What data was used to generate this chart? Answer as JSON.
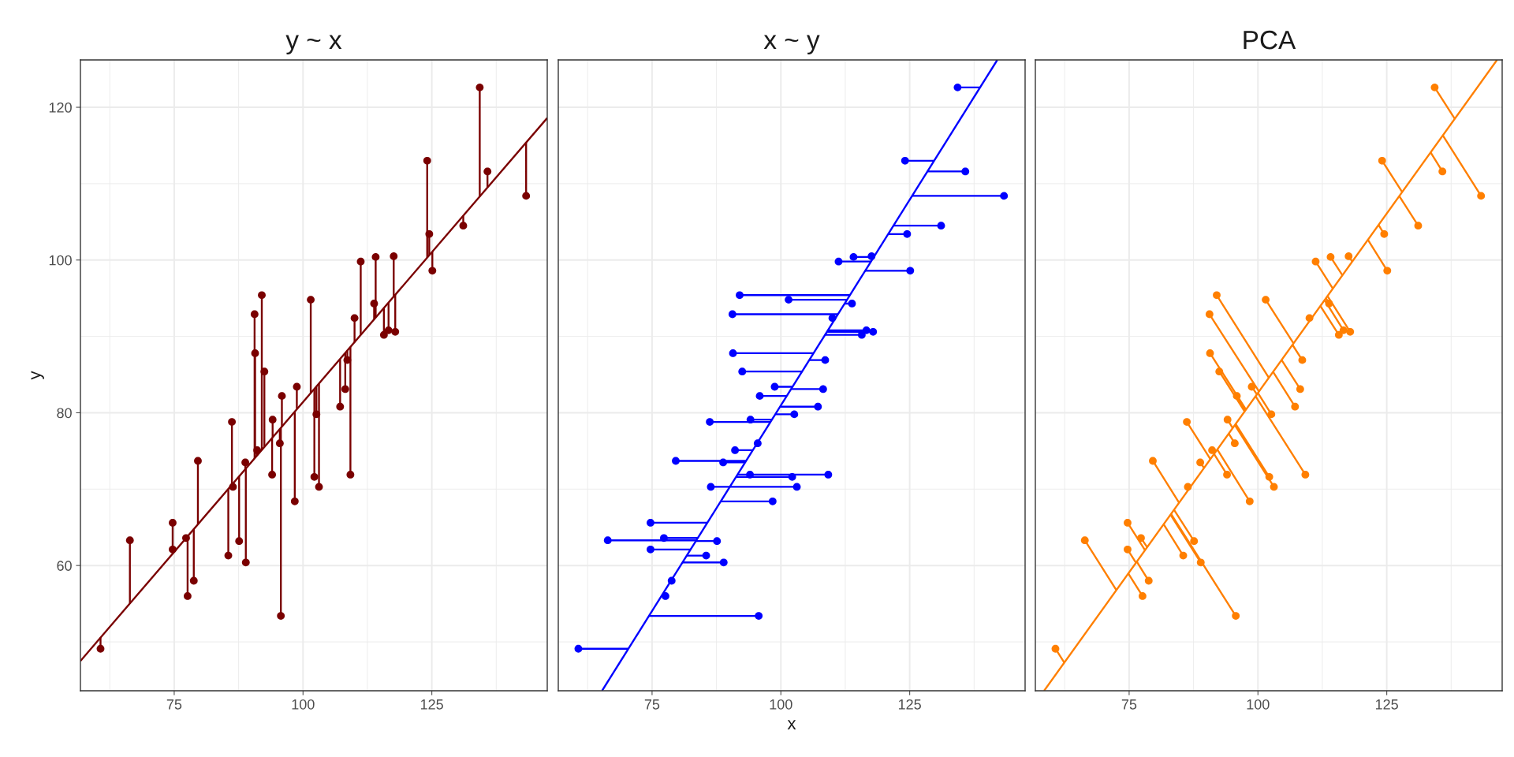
{
  "chart_data": [
    {
      "type": "scatter",
      "title": "y ~ x",
      "ylabel": "y",
      "xlim": [
        56.8,
        147.4
      ],
      "ylim": [
        43.6,
        126.2
      ],
      "xticks": [
        75,
        100,
        125
      ],
      "yticks": [
        60,
        80,
        100,
        120
      ],
      "grid": true,
      "series": [
        {
          "type": "scatter",
          "marker": "circle",
          "color": "#7a0000",
          "x": [
            60.7,
            66.4,
            74.7,
            74.7,
            77.3,
            77.6,
            78.8,
            79.6,
            85.5,
            86.2,
            86.4,
            87.6,
            88.8,
            88.9,
            90.6,
            90.7,
            91.1,
            92.0,
            92.5,
            94.0,
            94.1,
            95.5,
            95.9,
            95.7,
            98.4,
            98.8,
            101.5,
            102.2,
            102.6,
            103.1,
            107.2,
            108.2,
            108.6,
            109.2,
            110.0,
            111.2,
            113.8,
            114.1,
            115.7,
            116.6,
            117.6,
            117.9,
            124.1,
            124.5,
            125.1,
            131.1,
            134.3,
            135.8,
            143.3
          ],
          "values": [
            49.1,
            63.3,
            65.6,
            62.1,
            63.6,
            56.0,
            58.0,
            73.7,
            61.3,
            78.8,
            70.3,
            63.2,
            73.5,
            60.4,
            92.9,
            87.8,
            75.1,
            95.4,
            85.4,
            71.9,
            79.1,
            76.0,
            82.2,
            53.4,
            68.4,
            83.4,
            94.8,
            71.6,
            79.8,
            70.3,
            80.8,
            83.1,
            86.9,
            71.9,
            92.4,
            99.8,
            94.3,
            100.4,
            90.2,
            90.8,
            100.5,
            90.6,
            113.0,
            103.4,
            98.6,
            104.5,
            122.6,
            111.6,
            108.4
          ]
        },
        {
          "type": "line",
          "marker": "none",
          "color": "#7a0000",
          "x": [
            60.7,
            60.7,
            null,
            66.4,
            66.4,
            null,
            74.7,
            74.7,
            null,
            77.6,
            77.6,
            null,
            78.8,
            78.8,
            null,
            79.6,
            79.6,
            null,
            85.5,
            85.5,
            null,
            86.2,
            86.2,
            null,
            87.6,
            87.6,
            null,
            88.8,
            88.8,
            null,
            88.9,
            88.9,
            null,
            90.6,
            90.6,
            null,
            90.7,
            90.7,
            null,
            91.1,
            91.1,
            null,
            92.0,
            92.0,
            null,
            92.5,
            92.5,
            null,
            94.0,
            94.0,
            null,
            94.1,
            94.1,
            null,
            95.5,
            95.5,
            null,
            95.9,
            95.9,
            null,
            95.7,
            95.7,
            null,
            98.4,
            98.4,
            null,
            98.8,
            98.8,
            null,
            101.5,
            101.5,
            null,
            102.2,
            102.2,
            null,
            102.6,
            102.6,
            null,
            103.1,
            103.1,
            null,
            107.2,
            107.2,
            null,
            108.2,
            108.2,
            null,
            108.6,
            108.6,
            null,
            109.2,
            109.2,
            null,
            110.0,
            110.0,
            null,
            111.2,
            111.2,
            null,
            113.8,
            113.8,
            null,
            114.1,
            114.1,
            null,
            115.7,
            115.7,
            null,
            116.6,
            116.6,
            null,
            117.6,
            117.6,
            null,
            117.9,
            117.9,
            null,
            124.1,
            124.1,
            null,
            124.5,
            124.5,
            null,
            125.1,
            125.1,
            null,
            131.1,
            131.1,
            null,
            134.3,
            134.3,
            null,
            135.8,
            135.8,
            null,
            143.3,
            143.3
          ],
          "values": [
            49.1,
            50.6,
            null,
            63.3,
            55.0,
            null,
            65.6,
            61.5,
            null,
            56.0,
            63.8,
            null,
            58.0,
            64.8,
            null,
            73.7,
            65.4,
            null,
            61.3,
            70.0,
            null,
            78.8,
            70.6,
            null,
            63.2,
            71.7,
            null,
            73.5,
            72.6,
            null,
            60.4,
            72.7,
            null,
            92.9,
            74.0,
            null,
            87.8,
            74.1,
            null,
            75.1,
            74.4,
            null,
            95.4,
            75.1,
            null,
            85.4,
            75.5,
            null,
            71.9,
            76.7,
            null,
            79.1,
            76.8,
            null,
            76.0,
            77.9,
            null,
            82.2,
            78.2,
            null,
            53.4,
            78.0,
            null,
            68.4,
            80.1,
            null,
            83.4,
            80.5,
            null,
            94.8,
            82.6,
            null,
            71.6,
            83.1,
            null,
            79.8,
            83.4,
            null,
            70.3,
            83.8,
            null,
            80.8,
            87.0,
            null,
            83.1,
            87.8,
            null,
            86.9,
            88.2,
            null,
            71.9,
            88.6,
            null,
            92.4,
            89.2,
            null,
            99.8,
            90.2,
            null,
            94.3,
            92.2,
            null,
            100.4,
            92.5,
            null,
            90.2,
            93.7,
            null,
            90.8,
            94.4,
            null,
            100.5,
            95.2,
            null,
            90.6,
            95.5,
            null,
            113.0,
            100.3,
            null,
            103.4,
            100.6,
            null,
            98.6,
            101.1,
            null,
            104.5,
            105.8,
            null,
            122.6,
            108.3,
            null,
            111.6,
            109.5,
            null,
            108.4,
            115.4
          ]
        },
        {
          "type": "line",
          "marker": "none",
          "color": "#7a0000",
          "x": [
            56.8,
            147.4
          ],
          "values": [
            47.5,
            118.6
          ]
        }
      ]
    },
    {
      "type": "scatter",
      "title": "x ~ y",
      "xlabel": "x",
      "xlim": [
        56.8,
        147.4
      ],
      "ylim": [
        43.6,
        126.2
      ],
      "xticks": [
        75,
        100,
        125
      ],
      "yticks": [
        60,
        80,
        100,
        120
      ],
      "grid": true,
      "tick_labels": "x",
      "series": [
        {
          "type": "scatter",
          "marker": "circle",
          "color": "#0000ff",
          "x": [
            60.7,
            66.4,
            74.7,
            74.7,
            77.3,
            77.6,
            78.8,
            79.6,
            85.5,
            86.2,
            86.4,
            87.6,
            88.8,
            88.9,
            90.6,
            90.7,
            91.1,
            92.0,
            92.5,
            94.0,
            94.1,
            95.5,
            95.9,
            95.7,
            98.4,
            98.8,
            101.5,
            102.2,
            102.6,
            103.1,
            107.2,
            108.2,
            108.6,
            109.2,
            110.0,
            111.2,
            113.8,
            114.1,
            115.7,
            116.6,
            117.6,
            117.9,
            124.1,
            124.5,
            125.1,
            131.1,
            134.3,
            135.8,
            143.3
          ],
          "values": [
            49.1,
            63.3,
            65.6,
            62.1,
            63.6,
            56.0,
            58.0,
            73.7,
            61.3,
            78.8,
            70.3,
            63.2,
            73.5,
            60.4,
            92.9,
            87.8,
            75.1,
            95.4,
            85.4,
            71.9,
            79.1,
            76.0,
            82.2,
            53.4,
            68.4,
            83.4,
            94.8,
            71.6,
            79.8,
            70.3,
            80.8,
            83.1,
            86.9,
            71.9,
            92.4,
            99.8,
            94.3,
            100.4,
            90.2,
            90.8,
            100.5,
            90.6,
            113.0,
            103.4,
            98.6,
            104.5,
            122.6,
            111.6,
            108.4
          ]
        },
        {
          "type": "line",
          "marker": "none",
          "color": "#0000ff",
          "x": [
            60.7,
            70.4,
            null,
            66.4,
            83.6,
            null,
            74.7,
            85.7,
            null,
            74.7,
            82.5,
            null,
            77.3,
            83.9,
            null,
            77.6,
            76.8,
            null,
            79.6,
            93.2,
            null,
            85.5,
            81.7,
            null,
            86.2,
            98.0,
            null,
            86.4,
            90.1,
            null,
            87.6,
            83.5,
            null,
            88.8,
            93.0,
            null,
            88.9,
            80.9,
            null,
            90.6,
            111.1,
            null,
            90.7,
            106.3,
            null,
            91.1,
            94.5,
            null,
            92.0,
            113.4,
            null,
            92.5,
            104.1,
            null,
            94.0,
            91.6,
            null,
            94.1,
            98.2,
            null,
            95.9,
            101.1,
            null,
            95.7,
            74.4,
            null,
            98.4,
            88.3,
            null,
            98.8,
            102.2,
            null,
            101.5,
            112.8,
            null,
            102.2,
            91.3,
            null,
            102.6,
            98.9,
            null,
            103.1,
            90.1,
            null,
            107.2,
            99.8,
            null,
            108.2,
            102.0,
            null,
            108.6,
            105.5,
            null,
            109.2,
            91.6,
            null,
            111.2,
            117.5,
            null,
            113.8,
            112.4,
            null,
            114.1,
            118.0,
            null,
            115.7,
            108.5,
            null,
            116.6,
            109.1,
            null,
            117.9,
            108.9,
            null,
            124.1,
            129.7,
            null,
            124.5,
            120.8,
            null,
            125.1,
            116.3,
            null,
            131.1,
            121.8,
            null,
            134.3,
            138.6,
            null,
            135.8,
            128.4,
            null,
            143.3,
            125.4
          ],
          "values": [
            49.1,
            49.1,
            null,
            63.3,
            63.3,
            null,
            65.6,
            65.6,
            null,
            62.1,
            62.1,
            null,
            63.6,
            63.6,
            null,
            56.0,
            56.0,
            null,
            73.7,
            73.7,
            null,
            61.3,
            61.3,
            null,
            78.8,
            78.8,
            null,
            70.3,
            70.3,
            null,
            63.2,
            63.2,
            null,
            73.5,
            73.5,
            null,
            60.4,
            60.4,
            null,
            92.9,
            92.9,
            null,
            87.8,
            87.8,
            null,
            75.1,
            75.1,
            null,
            95.4,
            95.4,
            null,
            85.4,
            85.4,
            null,
            71.9,
            71.9,
            null,
            79.1,
            79.1,
            null,
            82.2,
            82.2,
            null,
            53.4,
            53.4,
            null,
            68.4,
            68.4,
            null,
            83.4,
            83.4,
            null,
            94.8,
            94.8,
            null,
            71.6,
            71.6,
            null,
            79.8,
            79.8,
            null,
            70.3,
            70.3,
            null,
            80.8,
            80.8,
            null,
            83.1,
            83.1,
            null,
            86.9,
            86.9,
            null,
            71.9,
            71.9,
            null,
            99.8,
            99.8,
            null,
            94.3,
            94.3,
            null,
            100.4,
            100.4,
            null,
            90.2,
            90.2,
            null,
            90.8,
            90.8,
            null,
            90.6,
            90.6,
            null,
            113.0,
            113.0,
            null,
            103.4,
            103.4,
            null,
            98.6,
            98.6,
            null,
            104.5,
            104.5,
            null,
            122.6,
            122.6,
            null,
            111.6,
            111.6,
            null,
            108.4,
            108.4
          ]
        },
        {
          "type": "line",
          "marker": "none",
          "color": "#0000ff",
          "x": [
            65.3,
            142.0
          ],
          "values": [
            43.6,
            126.2
          ]
        }
      ]
    },
    {
      "type": "scatter",
      "title": "PCA",
      "xlim": [
        56.8,
        147.4
      ],
      "ylim": [
        43.6,
        126.2
      ],
      "xticks": [
        75,
        100,
        125
      ],
      "yticks": [
        60,
        80,
        100,
        120
      ],
      "grid": true,
      "tick_labels": "x",
      "series": [
        {
          "type": "scatter",
          "marker": "circle",
          "color": "#ff7f00",
          "x": [
            60.7,
            66.4,
            74.7,
            74.7,
            77.3,
            77.6,
            78.8,
            79.6,
            85.5,
            86.2,
            86.4,
            87.6,
            88.8,
            88.9,
            90.6,
            90.7,
            91.1,
            92.0,
            92.5,
            94.0,
            94.1,
            95.5,
            95.9,
            95.7,
            98.4,
            98.8,
            101.5,
            102.2,
            102.6,
            103.1,
            107.2,
            108.2,
            108.6,
            109.2,
            110.0,
            111.2,
            113.8,
            114.1,
            115.7,
            116.6,
            117.6,
            117.9,
            124.1,
            124.5,
            125.1,
            131.1,
            134.3,
            135.8,
            143.3
          ],
          "values": [
            49.1,
            63.3,
            65.6,
            62.1,
            63.6,
            56.0,
            58.0,
            73.7,
            61.3,
            78.8,
            70.3,
            63.2,
            73.5,
            60.4,
            92.9,
            87.8,
            75.1,
            95.4,
            85.4,
            71.9,
            79.1,
            76.0,
            82.2,
            53.4,
            68.4,
            83.4,
            94.8,
            71.6,
            79.8,
            70.3,
            80.8,
            83.1,
            86.9,
            71.9,
            92.4,
            99.8,
            94.3,
            100.4,
            90.2,
            90.8,
            100.5,
            90.6,
            113.0,
            103.4,
            98.6,
            104.5,
            122.6,
            111.6,
            108.4
          ]
        },
        {
          "type": "line",
          "marker": "none",
          "color": "#ff7f00",
          "x": [
            60.7,
            62.4,
            null,
            66.4,
            72.5,
            null,
            74.7,
            78.1,
            null,
            74.7,
            76.3,
            null,
            77.3,
            78.5,
            null,
            77.6,
            74.8,
            null,
            78.8,
            76.5,
            null,
            79.6,
            84.7,
            null,
            85.5,
            81.7,
            null,
            86.2,
            90.8,
            null,
            87.6,
            83.7,
            null,
            88.8,
            89.5,
            null,
            88.9,
            83.0,
            null,
            90.6,
            100.2,
            null,
            90.7,
            97.7,
            null,
            92.0,
            102.1,
            null,
            92.5,
            97.4,
            null,
            94.0,
            91.5,
            null,
            94.1,
            95.1,
            null,
            95.5,
            94.3,
            null,
            95.9,
            97.6,
            null,
            95.7,
            83.1,
            null,
            98.4,
            92.1,
            null,
            98.8,
            99.8,
            null,
            101.5,
            106.9,
            null,
            102.2,
            95.7,
            null,
            102.6,
            100.0,
            null,
            103.1,
            95.5,
            null,
            107.2,
            102.9,
            null,
            108.2,
            104.6,
            null,
            108.6,
            106.7,
            null,
            109.2,
            99.5,
            null,
            111.2,
            114.5,
            null,
            113.8,
            113.2,
            null,
            114.1,
            116.4,
            null,
            115.7,
            112.1,
            null,
            116.6,
            112.9,
            null,
            117.6,
            118.3,
            null,
            117.9,
            113.5,
            null,
            124.1,
            128.0,
            null,
            124.5,
            123.4,
            null,
            125.1,
            121.3,
            null,
            131.1,
            127.4,
            null,
            134.3,
            138.2,
            null,
            135.8,
            133.5,
            null,
            143.3,
            135.9
          ],
          "values": [
            49.1,
            47.3,
            null,
            63.3,
            56.8,
            null,
            65.6,
            62.0,
            null,
            62.1,
            60.4,
            null,
            63.6,
            62.4,
            null,
            56.0,
            59.0,
            null,
            58.0,
            60.5,
            null,
            73.7,
            68.2,
            null,
            61.3,
            65.4,
            null,
            78.8,
            73.9,
            null,
            63.2,
            67.3,
            null,
            73.5,
            72.8,
            null,
            60.4,
            66.7,
            null,
            92.9,
            82.8,
            null,
            87.8,
            80.4,
            null,
            95.4,
            84.6,
            null,
            85.4,
            80.2,
            null,
            71.9,
            74.6,
            null,
            79.1,
            78.0,
            null,
            76.0,
            77.3,
            null,
            82.2,
            80.4,
            null,
            53.4,
            66.8,
            null,
            68.4,
            75.2,
            null,
            83.4,
            82.4,
            null,
            94.8,
            89.1,
            null,
            71.6,
            78.5,
            null,
            79.8,
            82.6,
            null,
            70.3,
            78.4,
            null,
            80.8,
            85.4,
            null,
            83.1,
            86.9,
            null,
            86.9,
            88.9,
            null,
            71.9,
            82.2,
            null,
            99.8,
            96.3,
            null,
            94.3,
            95.0,
            null,
            100.4,
            98.0,
            null,
            90.2,
            94.0,
            null,
            90.8,
            94.8,
            null,
            100.5,
            99.8,
            null,
            90.6,
            95.3,
            null,
            113.0,
            108.9,
            null,
            103.4,
            104.6,
            null,
            98.6,
            102.7,
            null,
            104.5,
            108.4,
            null,
            122.6,
            118.5,
            null,
            111.6,
            114.1,
            null,
            108.4,
            116.3
          ]
        },
        {
          "type": "line",
          "marker": "none",
          "color": "#ff7f00",
          "x": [
            58.5,
            146.4
          ],
          "values": [
            43.6,
            126.2
          ]
        }
      ]
    }
  ]
}
